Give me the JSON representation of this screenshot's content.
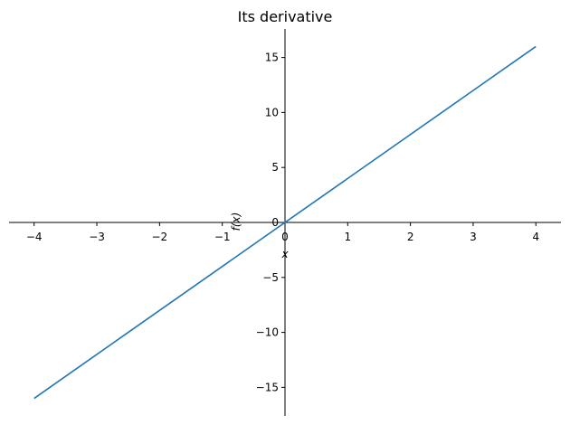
{
  "chart_data": {
    "type": "line",
    "title": "Its derivative",
    "xlabel": "x",
    "ylabel": "f(x)",
    "xlim": [
      -4.4,
      4.4
    ],
    "ylim": [
      -17.6,
      17.6
    ],
    "x_ticks": [
      -4,
      -3,
      -2,
      -1,
      0,
      1,
      2,
      3,
      4
    ],
    "y_ticks": [
      -15,
      -10,
      -5,
      0,
      5,
      10,
      15
    ],
    "grid": false,
    "spines": "centered at origin",
    "series": [
      {
        "color": "#1f77b4",
        "x": [
          -4,
          4
        ],
        "y": [
          -16,
          16
        ]
      }
    ]
  }
}
